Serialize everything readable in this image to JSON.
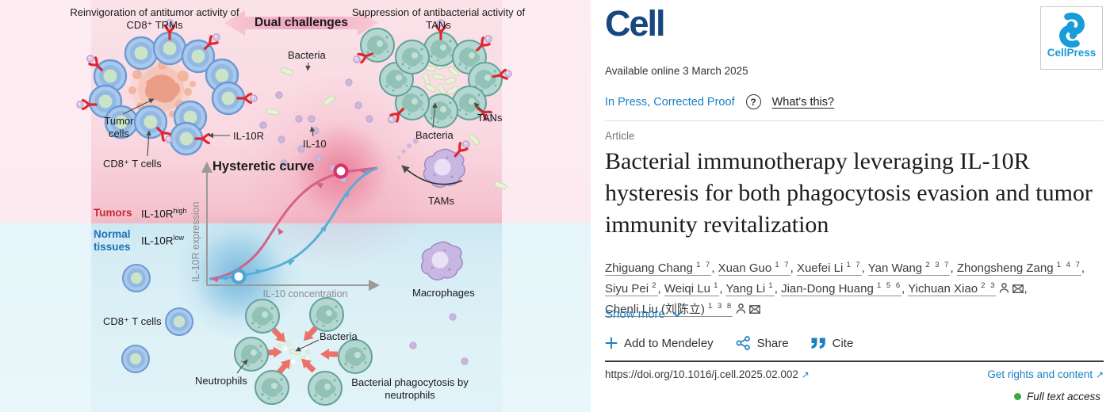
{
  "colors": {
    "link_blue": "#1b7fc3",
    "cell_navy": "#17477e",
    "cellpress_blue": "#1a9cd8",
    "access_green": "#39a845",
    "tumors_red": "#c62a33",
    "normal_blue": "#1a73b9"
  },
  "ga": {
    "caption_left": "Reinvigoration of antitumor activity of CD8⁺ TRMs",
    "banner": "Dual challenges",
    "caption_right": "Suppression of antibacterial activity of TANs",
    "labels": {
      "tumor_cells": "Tumor cells",
      "cd8_top": "CD8⁺ T cells",
      "il10r": "IL-10R",
      "il10": "IL-10",
      "bacteria_top": "Bacteria",
      "bacteria_mid": "Bacteria",
      "bacteria_bottom": "Bacteria",
      "tans": "TANs",
      "tams": "TAMs",
      "macrophages": "Macrophages",
      "neutrophils": "Neutrophils",
      "cd8_bottom": "CD8⁺ T cells",
      "phagocytosis": "Bacterial phagocytosis by neutrophils"
    },
    "plot": {
      "title": "Hysteretic curve",
      "ylabel": "IL-10R expression",
      "xlabel": "IL-10 concentration"
    },
    "bands": {
      "tumors": "Tumors",
      "il10r": "IL-10R",
      "high": "high",
      "normal_tissues": "Normal tissues",
      "low": "low"
    }
  },
  "header": {
    "journal": "Cell",
    "publisher": "CellPress",
    "available": "Available online 3 March 2025",
    "in_press": "In Press, Corrected Proof",
    "help_glyph": "?",
    "whats_this": "What's this?"
  },
  "article": {
    "kicker": "Article",
    "title": "Bacterial immunotherapy leveraging IL-10R hysteresis for both phagocytosis evasion and tumor immunity revitalization",
    "show_more": "Show more",
    "doi": "https://doi.org/10.1016/j.cell.2025.02.002",
    "rights": "Get rights and content",
    "access": "Full text access",
    "external_arrow": "↗"
  },
  "authors": [
    {
      "name": "Zhiguang Chang",
      "sup": "1 7"
    },
    {
      "name": "Xuan Guo",
      "sup": "1 7"
    },
    {
      "name": "Xuefei Li",
      "sup": "1 7"
    },
    {
      "name": "Yan Wang",
      "sup": "2 3 7"
    },
    {
      "name": "Zhongsheng Zang",
      "sup": "1 4 7"
    },
    {
      "name": "Siyu Pei",
      "sup": "2"
    },
    {
      "name": "Weiqi Lu",
      "sup": "1"
    },
    {
      "name": "Yang Li",
      "sup": "1"
    },
    {
      "name": "Jian-Dong Huang",
      "sup": "1 5 6"
    },
    {
      "name": "Yichuan Xiao",
      "sup": "2 3",
      "person": true,
      "email": true
    },
    {
      "name": "Chenli Liu (刘陈立)",
      "sup": "1 3 8",
      "person": true,
      "email": true
    }
  ],
  "actions": {
    "mendeley": "Add to Mendeley",
    "share": "Share",
    "cite": "Cite"
  }
}
